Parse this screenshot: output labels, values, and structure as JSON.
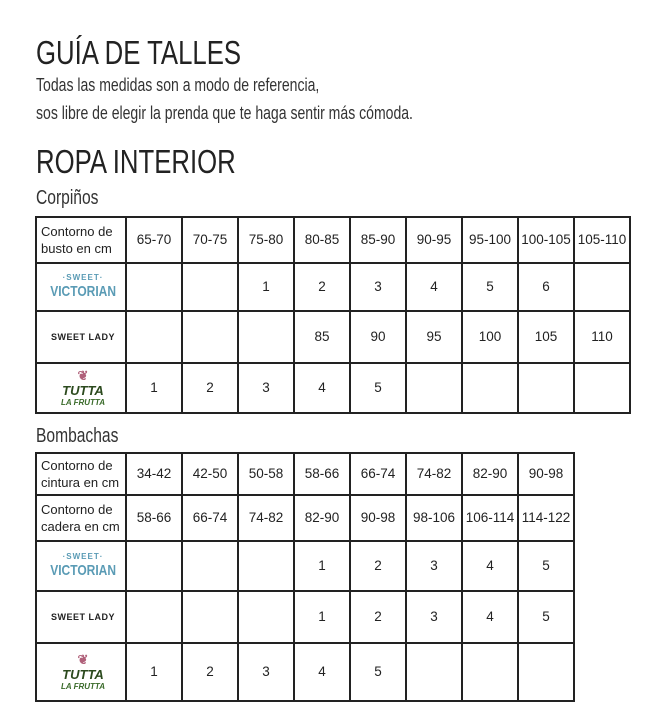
{
  "title": "GUÍA DE TALLES",
  "subtitle_line1": "Todas las medidas son a modo de referencia,",
  "subtitle_line2": "sos libre de elegir la prenda que te haga sentir más cómoda.",
  "section": "ROPA INTERIOR",
  "brands": {
    "sweet_victorian": {
      "top": "·SWEET·",
      "bottom": "VICTORIAN"
    },
    "sweet_lady": "SWEET LADY",
    "tutta_frutta": {
      "top": "TUTTA",
      "bottom": "LA FRUTTA"
    }
  },
  "corpinos": {
    "heading": "Corpiños",
    "header_label": "Contorno de busto en cm",
    "sizes": [
      "65-70",
      "70-75",
      "75-80",
      "80-85",
      "85-90",
      "90-95",
      "95-100",
      "100-105",
      "105-110"
    ],
    "sweet_victorian": [
      "",
      "",
      "1",
      "2",
      "3",
      "4",
      "5",
      "6",
      ""
    ],
    "sweet_lady": [
      "",
      "",
      "",
      "85",
      "90",
      "95",
      "100",
      "105",
      "110"
    ],
    "tutta_frutta": [
      "1",
      "2",
      "3",
      "4",
      "5",
      "",
      "",
      "",
      ""
    ]
  },
  "bombachas": {
    "heading": "Bombachas",
    "waist_label": "Contorno de cintura en cm",
    "waist": [
      "34-42",
      "42-50",
      "50-58",
      "58-66",
      "66-74",
      "74-82",
      "82-90",
      "90-98"
    ],
    "hip_label": "Contorno de cadera en cm",
    "hip": [
      "58-66",
      "66-74",
      "74-82",
      "82-90",
      "90-98",
      "98-106",
      "106-114",
      "114-122"
    ],
    "sweet_victorian": [
      "",
      "",
      "",
      "1",
      "2",
      "3",
      "4",
      "5"
    ],
    "sweet_lady": [
      "",
      "",
      "",
      "1",
      "2",
      "3",
      "4",
      "5"
    ],
    "tutta_frutta": [
      "1",
      "2",
      "3",
      "4",
      "5",
      "",
      "",
      ""
    ]
  }
}
